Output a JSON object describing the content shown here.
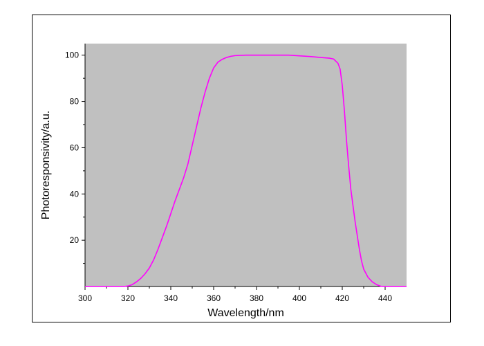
{
  "chart_data": {
    "type": "line",
    "xlabel": "Wavelength/nm",
    "ylabel": "Photoresponsivity/a.u.",
    "xlim": [
      300,
      450
    ],
    "ylim": [
      0,
      105
    ],
    "x_ticks": [
      300,
      320,
      340,
      360,
      380,
      400,
      420,
      440
    ],
    "y_ticks": [
      20,
      40,
      60,
      80,
      100
    ],
    "x_tick_labels": [
      "300",
      "320",
      "340",
      "360",
      "380",
      "400",
      "420",
      "440"
    ],
    "y_tick_labels": [
      "20",
      "40",
      "60",
      "80",
      "100"
    ],
    "plot_background": "#c0c0c0",
    "grid": false,
    "legend": "none",
    "series": [
      {
        "color": "#ff00ff",
        "points": [
          [
            300,
            0
          ],
          [
            310,
            0
          ],
          [
            318,
            0
          ],
          [
            320,
            0.2
          ],
          [
            322,
            0.8
          ],
          [
            324,
            2
          ],
          [
            326,
            3.5
          ],
          [
            328,
            5.5
          ],
          [
            330,
            8
          ],
          [
            332,
            11.5
          ],
          [
            334,
            16
          ],
          [
            336,
            21
          ],
          [
            338,
            26
          ],
          [
            340,
            31.5
          ],
          [
            342,
            37
          ],
          [
            344,
            42
          ],
          [
            346,
            47
          ],
          [
            348,
            53
          ],
          [
            350,
            61
          ],
          [
            352,
            69
          ],
          [
            354,
            77
          ],
          [
            356,
            84
          ],
          [
            358,
            90
          ],
          [
            360,
            94.5
          ],
          [
            362,
            97
          ],
          [
            364,
            98.2
          ],
          [
            366,
            99
          ],
          [
            368,
            99.5
          ],
          [
            370,
            99.8
          ],
          [
            375,
            100
          ],
          [
            380,
            100
          ],
          [
            385,
            100
          ],
          [
            390,
            100
          ],
          [
            395,
            100
          ],
          [
            400,
            99.7
          ],
          [
            405,
            99.4
          ],
          [
            410,
            99
          ],
          [
            414,
            98.7
          ],
          [
            416,
            98.3
          ],
          [
            418,
            96.5
          ],
          [
            419,
            94
          ],
          [
            420,
            87
          ],
          [
            421,
            76
          ],
          [
            422,
            63
          ],
          [
            423,
            52
          ],
          [
            424,
            42
          ],
          [
            425,
            35
          ],
          [
            426,
            28
          ],
          [
            427,
            22
          ],
          [
            428,
            16
          ],
          [
            429,
            11
          ],
          [
            430,
            7.5
          ],
          [
            432,
            4
          ],
          [
            434,
            2
          ],
          [
            436,
            0.8
          ],
          [
            438,
            0.1
          ],
          [
            440,
            0
          ],
          [
            445,
            0
          ],
          [
            450,
            0
          ]
        ]
      }
    ]
  }
}
